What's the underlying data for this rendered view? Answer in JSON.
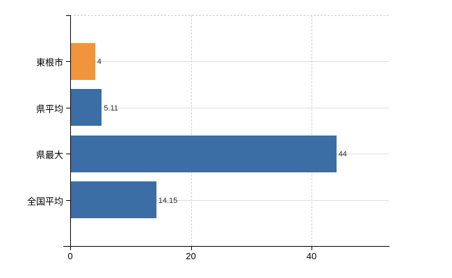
{
  "chart_data": {
    "type": "bar",
    "orientation": "horizontal",
    "title": "",
    "xlabel": "",
    "ylabel": "",
    "categories": [
      "東根市",
      "県平均",
      "県最大",
      "全国平均"
    ],
    "values": [
      4,
      5.11,
      44,
      14.15
    ],
    "value_labels": [
      "4",
      "5.11",
      "44",
      "14.15"
    ],
    "x_ticks": [
      0,
      20,
      40
    ],
    "x_tick_labels": [
      "0",
      "20",
      "40"
    ],
    "xlim": [
      0,
      52.8
    ],
    "grid": true,
    "legend": null,
    "colors": {
      "bar_fill": [
        "#F0953C",
        "#3B6EA5",
        "#3B6EA5",
        "#3B6EA5"
      ],
      "highlight_bar": "#F0953C",
      "default_bar": "#3B6EA5",
      "axis": "#000000",
      "h_gridline": "#dbe0db",
      "v_gridline": "#cfcfcf",
      "text": "#000000",
      "value_text": "#2b2b2b"
    }
  }
}
